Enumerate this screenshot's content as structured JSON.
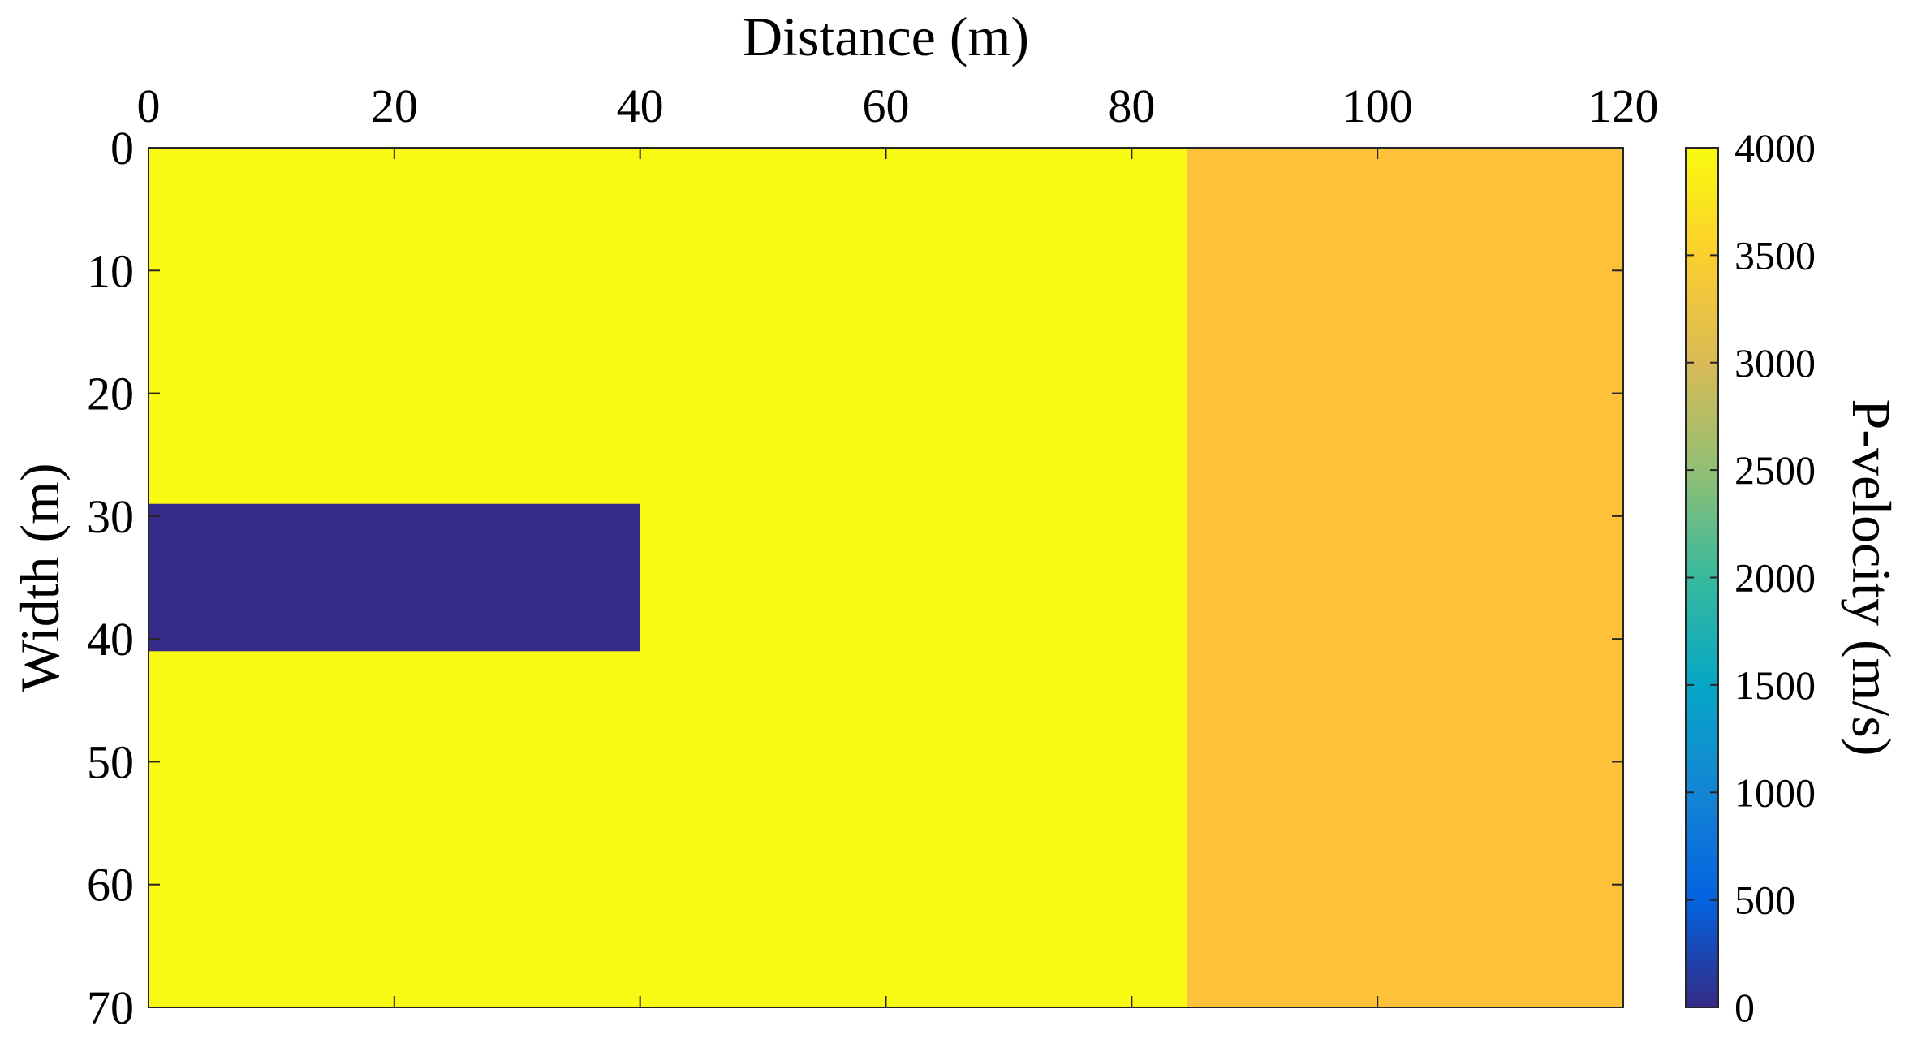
{
  "chart_data": {
    "type": "heatmap",
    "title": "",
    "xlabel": "Distance (m)",
    "ylabel": "Width (m)",
    "xlim": [
      0,
      120
    ],
    "ylim": [
      0,
      70
    ],
    "y_reversed": true,
    "x_axis_position": "top",
    "x_ticks": [
      "0",
      "20",
      "40",
      "60",
      "80",
      "100",
      "120"
    ],
    "y_ticks": [
      "0",
      "10",
      "20",
      "30",
      "40",
      "50",
      "60",
      "70"
    ],
    "grid": false,
    "regions": [
      {
        "x": [
          0,
          84.5
        ],
        "y": [
          0,
          70
        ],
        "value": 4000,
        "color": "#F9FA14"
      },
      {
        "x": [
          84.5,
          120
        ],
        "y": [
          0,
          70
        ],
        "value": 3500,
        "color": "#FEC13A"
      },
      {
        "x": [
          0,
          40
        ],
        "y": [
          29,
          41
        ],
        "value": 0,
        "color": "#352A87"
      }
    ],
    "colorbar": {
      "label": "P-velocity (m/s)",
      "range": [
        0,
        4000
      ],
      "ticks": [
        "0",
        "500",
        "1000",
        "1500",
        "2000",
        "2500",
        "3000",
        "3500",
        "4000"
      ],
      "colormap": "parula",
      "colormap_stops": [
        "#352A87",
        "#0363E1",
        "#1485D4",
        "#06A7C6",
        "#38B99E",
        "#92BF73",
        "#D9BA56",
        "#FCCE2E",
        "#F9FB0E"
      ]
    }
  }
}
